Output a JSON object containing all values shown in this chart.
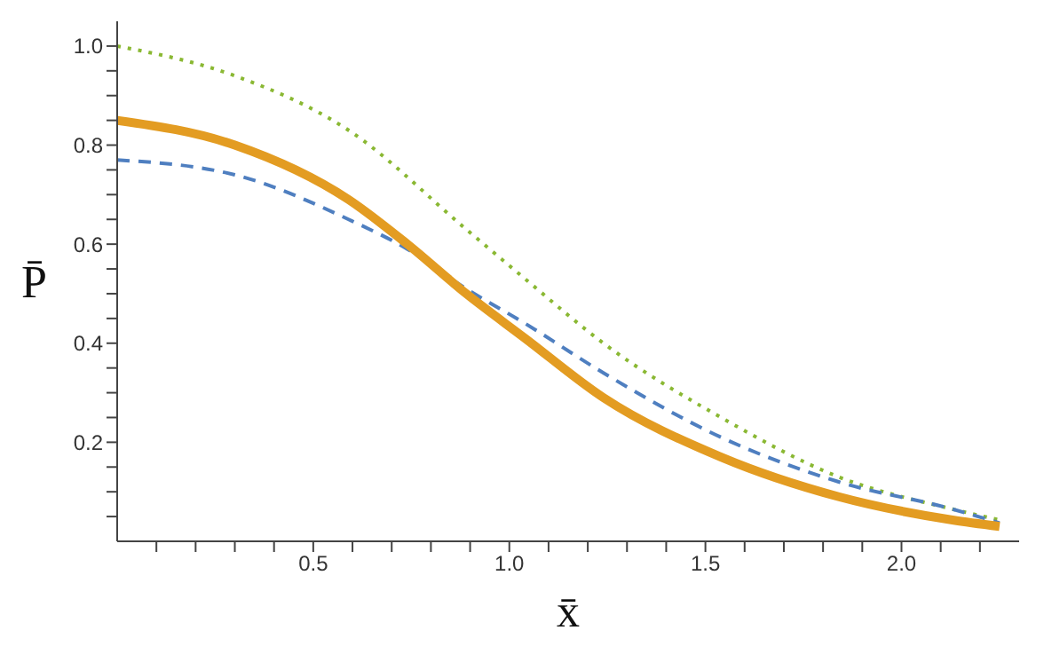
{
  "chart_data": {
    "type": "line",
    "xlabel": "x̄",
    "ylabel": "P̄",
    "xlim": [
      0,
      2.3
    ],
    "ylim": [
      0,
      1.05
    ],
    "xticks": [
      {
        "value": 0.1,
        "label": null
      },
      {
        "value": 0.2,
        "label": null
      },
      {
        "value": 0.3,
        "label": null
      },
      {
        "value": 0.4,
        "label": null
      },
      0.5,
      {
        "value": 0.6,
        "label": null
      },
      {
        "value": 0.7,
        "label": null
      },
      {
        "value": 0.8,
        "label": null
      },
      {
        "value": 0.9,
        "label": null
      },
      {
        "value": 1,
        "label": "1.0"
      },
      {
        "value": 1.1,
        "label": null
      },
      {
        "value": 1.2,
        "label": null
      },
      {
        "value": 1.3,
        "label": null
      },
      {
        "value": 1.4,
        "label": null
      },
      1.5,
      {
        "value": 1.6,
        "label": null
      },
      {
        "value": 1.7,
        "label": null
      },
      {
        "value": 1.8,
        "label": null
      },
      {
        "value": 1.9,
        "label": null
      },
      {
        "value": 2,
        "label": "2.0"
      },
      {
        "value": 2.1,
        "label": null
      },
      {
        "value": 2.2,
        "label": null
      }
    ],
    "yticks": [
      {
        "value": 0.05,
        "label": null
      },
      {
        "value": 0.1,
        "label": null
      },
      {
        "value": 0.15,
        "label": null
      },
      0.2,
      {
        "value": 0.25,
        "label": null
      },
      {
        "value": 0.3,
        "label": null
      },
      {
        "value": 0.35,
        "label": null
      },
      0.4,
      {
        "value": 0.45,
        "label": null
      },
      {
        "value": 0.5,
        "label": null
      },
      {
        "value": 0.55,
        "label": null
      },
      0.6,
      {
        "value": 0.65,
        "label": null
      },
      {
        "value": 0.7,
        "label": null
      },
      {
        "value": 0.75,
        "label": null
      },
      0.8,
      {
        "value": 0.85,
        "label": null
      },
      {
        "value": 0.9,
        "label": null
      },
      {
        "value": 0.95,
        "label": null
      },
      {
        "value": 1,
        "label": "1.0"
      }
    ],
    "marker": "none",
    "series": [
      {
        "color": "#8ab833",
        "line_style": "dotted",
        "x": [
          0,
          0.3,
          0.59,
          0.89,
          1.04,
          1.24,
          1.54,
          1.84,
          2.13,
          2.25
        ],
        "values": [
          1.0,
          0.94,
          0.83,
          0.63,
          0.53,
          0.4,
          0.25,
          0.13,
          0.065,
          0.043
        ]
      },
      {
        "color": "#4f7fc0",
        "line_style": "dashed",
        "x": [
          0,
          0.3,
          0.59,
          0.74,
          0.89,
          1.04,
          1.24,
          1.54,
          1.84,
          2.13,
          2.25
        ],
        "values": [
          0.77,
          0.74,
          0.65,
          0.59,
          0.51,
          0.44,
          0.34,
          0.21,
          0.12,
          0.065,
          0.037
        ]
      },
      {
        "color": "#e39c22",
        "line_style": "solid",
        "x": [
          0,
          0.3,
          0.59,
          0.74,
          0.89,
          1.04,
          1.24,
          1.54,
          1.84,
          2.13,
          2.25
        ],
        "values": [
          0.85,
          0.8,
          0.69,
          0.6,
          0.5,
          0.41,
          0.29,
          0.17,
          0.09,
          0.043,
          0.03
        ]
      }
    ]
  }
}
